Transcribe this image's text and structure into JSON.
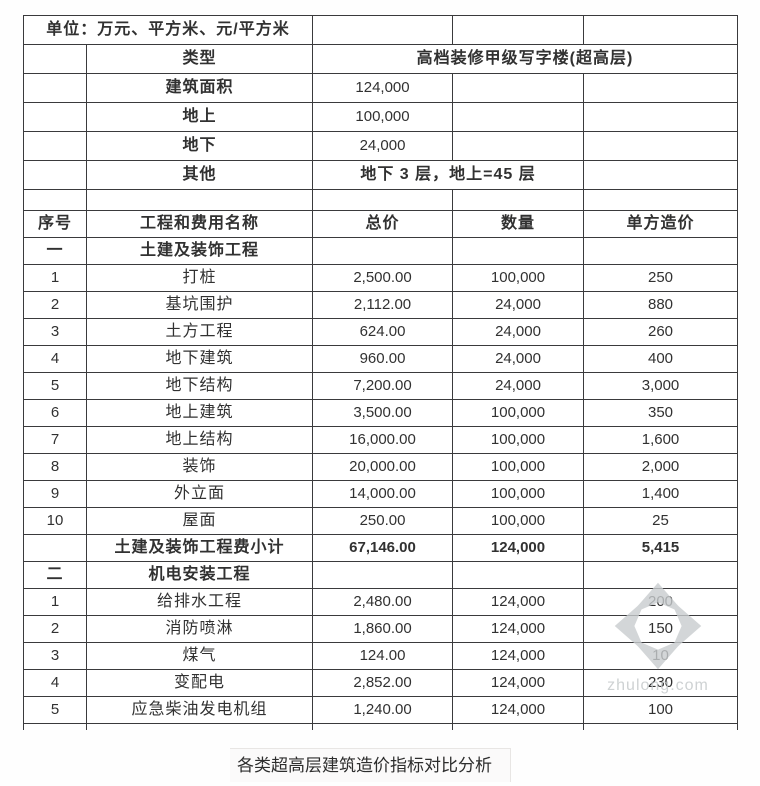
{
  "caption": {
    "text": "各类超高层建筑造价指标对比分析"
  },
  "watermark": {
    "text": "zhulong.com",
    "logo": "pinwheel-arrows-icon",
    "color": "#c9cdcf"
  },
  "colors": {
    "grid": "#3a3a3c",
    "text": "#313131",
    "background": "#ffffff"
  },
  "table": {
    "unit_note": "单位：万元、平方米、元/平方米",
    "building": {
      "type_label": "类型",
      "type_value": "高档装修甲级写字楼(超高层)",
      "area_label": "建筑面积",
      "area_value": "124,000",
      "above_label": "地上",
      "above_value": "100,000",
      "below_label": "地下",
      "below_value": "24,000",
      "other_label": "其他",
      "other_value": "地下 3 层，地上=45 层"
    },
    "column_headers": [
      "序号",
      "工程和费用名称",
      "总价",
      "数量",
      "单方造价"
    ],
    "rows": [
      {
        "kind": "info",
        "cells": [
          {
            "t": "单位：万元、平方米、元/平方米",
            "span": 2,
            "b": true
          },
          {
            "t": ""
          },
          {
            "t": ""
          },
          {
            "t": ""
          }
        ]
      },
      {
        "kind": "info",
        "cells": [
          {
            "t": ""
          },
          {
            "t": "类型",
            "b": true
          },
          {
            "t": "高档装修甲级写字楼(超高层)",
            "span": 3,
            "b": true
          }
        ]
      },
      {
        "kind": "info",
        "cells": [
          {
            "t": ""
          },
          {
            "t": "建筑面积",
            "b": true
          },
          {
            "t": "124,000"
          },
          {
            "t": ""
          },
          {
            "t": ""
          }
        ]
      },
      {
        "kind": "info",
        "cells": [
          {
            "t": ""
          },
          {
            "t": "地上",
            "b": true
          },
          {
            "t": "100,000"
          },
          {
            "t": ""
          },
          {
            "t": ""
          }
        ]
      },
      {
        "kind": "info",
        "cells": [
          {
            "t": ""
          },
          {
            "t": "地下",
            "b": true
          },
          {
            "t": "24,000"
          },
          {
            "t": ""
          },
          {
            "t": ""
          }
        ]
      },
      {
        "kind": "info",
        "cells": [
          {
            "t": ""
          },
          {
            "t": "其他",
            "b": true
          },
          {
            "t": "地下 3 层，地上=45 层",
            "span": 2,
            "b": true
          },
          {
            "t": ""
          }
        ]
      },
      {
        "kind": "spacer",
        "cells": [
          {
            "t": ""
          },
          {
            "t": ""
          },
          {
            "t": ""
          },
          {
            "t": ""
          },
          {
            "t": ""
          }
        ]
      },
      {
        "kind": "header",
        "cells": [
          {
            "t": "序号",
            "b": true
          },
          {
            "t": "工程和费用名称",
            "b": true
          },
          {
            "t": "总价",
            "b": true
          },
          {
            "t": "数量",
            "b": true
          },
          {
            "t": "单方造价",
            "b": true
          }
        ]
      },
      {
        "kind": "body",
        "cells": [
          {
            "t": "一",
            "b": true
          },
          {
            "t": "土建及装饰工程",
            "b": true
          },
          {
            "t": ""
          },
          {
            "t": ""
          },
          {
            "t": ""
          }
        ]
      },
      {
        "kind": "body",
        "cells": [
          {
            "t": "1"
          },
          {
            "t": "打桩"
          },
          {
            "t": "2,500.00"
          },
          {
            "t": "100,000"
          },
          {
            "t": "250"
          }
        ]
      },
      {
        "kind": "body",
        "cells": [
          {
            "t": "2"
          },
          {
            "t": "基坑围护"
          },
          {
            "t": "2,112.00"
          },
          {
            "t": "24,000"
          },
          {
            "t": "880"
          }
        ]
      },
      {
        "kind": "body",
        "cells": [
          {
            "t": "3"
          },
          {
            "t": "土方工程"
          },
          {
            "t": "624.00"
          },
          {
            "t": "24,000"
          },
          {
            "t": "260"
          }
        ]
      },
      {
        "kind": "body",
        "cells": [
          {
            "t": "4"
          },
          {
            "t": "地下建筑"
          },
          {
            "t": "960.00"
          },
          {
            "t": "24,000"
          },
          {
            "t": "400"
          }
        ]
      },
      {
        "kind": "body",
        "cells": [
          {
            "t": "5"
          },
          {
            "t": "地下结构"
          },
          {
            "t": "7,200.00"
          },
          {
            "t": "24,000"
          },
          {
            "t": "3,000"
          }
        ]
      },
      {
        "kind": "body",
        "cells": [
          {
            "t": "6"
          },
          {
            "t": "地上建筑"
          },
          {
            "t": "3,500.00"
          },
          {
            "t": "100,000"
          },
          {
            "t": "350"
          }
        ]
      },
      {
        "kind": "body",
        "cells": [
          {
            "t": "7"
          },
          {
            "t": "地上结构"
          },
          {
            "t": "16,000.00"
          },
          {
            "t": "100,000"
          },
          {
            "t": "1,600"
          }
        ]
      },
      {
        "kind": "body",
        "cells": [
          {
            "t": "8"
          },
          {
            "t": "装饰"
          },
          {
            "t": "20,000.00"
          },
          {
            "t": "100,000"
          },
          {
            "t": "2,000"
          }
        ]
      },
      {
        "kind": "body",
        "cells": [
          {
            "t": "9"
          },
          {
            "t": "外立面"
          },
          {
            "t": "14,000.00"
          },
          {
            "t": "100,000"
          },
          {
            "t": "1,400"
          }
        ]
      },
      {
        "kind": "body",
        "cells": [
          {
            "t": "10"
          },
          {
            "t": "屋面"
          },
          {
            "t": "250.00"
          },
          {
            "t": "100,000"
          },
          {
            "t": "25"
          }
        ]
      },
      {
        "kind": "body",
        "cells": [
          {
            "t": ""
          },
          {
            "t": "土建及装饰工程费小计",
            "b": true
          },
          {
            "t": "67,146.00",
            "b": true
          },
          {
            "t": "124,000",
            "b": true
          },
          {
            "t": "5,415",
            "b": true
          }
        ]
      },
      {
        "kind": "body",
        "cells": [
          {
            "t": "二",
            "b": true
          },
          {
            "t": "机电安装工程",
            "b": true
          },
          {
            "t": ""
          },
          {
            "t": ""
          },
          {
            "t": ""
          }
        ]
      },
      {
        "kind": "body",
        "cells": [
          {
            "t": "1"
          },
          {
            "t": "给排水工程"
          },
          {
            "t": "2,480.00"
          },
          {
            "t": "124,000"
          },
          {
            "t": "200"
          }
        ]
      },
      {
        "kind": "body",
        "cells": [
          {
            "t": "2"
          },
          {
            "t": "消防喷淋"
          },
          {
            "t": "1,860.00"
          },
          {
            "t": "124,000"
          },
          {
            "t": "150"
          }
        ]
      },
      {
        "kind": "body",
        "cells": [
          {
            "t": "3"
          },
          {
            "t": "煤气"
          },
          {
            "t": "124.00"
          },
          {
            "t": "124,000"
          },
          {
            "t": "10"
          }
        ]
      },
      {
        "kind": "body",
        "cells": [
          {
            "t": "4"
          },
          {
            "t": "变配电"
          },
          {
            "t": "2,852.00"
          },
          {
            "t": "124,000"
          },
          {
            "t": "230"
          }
        ]
      },
      {
        "kind": "body",
        "cells": [
          {
            "t": "5"
          },
          {
            "t": "应急柴油发电机组"
          },
          {
            "t": "1,240.00"
          },
          {
            "t": "124,000"
          },
          {
            "t": "100"
          }
        ]
      },
      {
        "kind": "stub",
        "cells": [
          {
            "t": ""
          },
          {
            "t": ""
          },
          {
            "t": ""
          },
          {
            "t": ""
          },
          {
            "t": ""
          }
        ]
      }
    ]
  }
}
